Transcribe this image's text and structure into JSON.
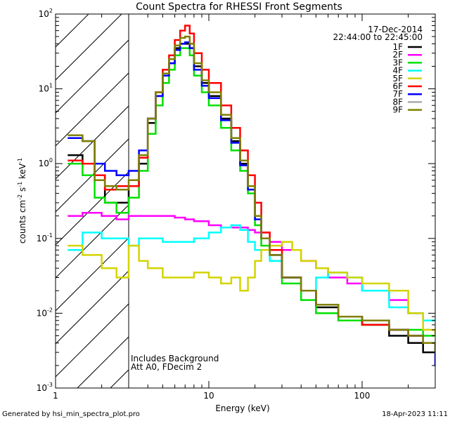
{
  "chart_data": {
    "type": "line",
    "title": "Count Spectra for RHESSI Front Segments",
    "xlabel": "Energy (keV)",
    "ylabel_parts": {
      "a": "counts cm",
      "b": "-2",
      "c": " s",
      "d": "-1",
      "e": " keV",
      "f": "-1"
    },
    "xscale": "log",
    "yscale": "log",
    "xlim": [
      1,
      300
    ],
    "ylim": [
      0.001,
      100
    ],
    "x_ticks": [
      {
        "v": 1,
        "label": "1"
      },
      {
        "v": 10,
        "label": "10"
      },
      {
        "v": 100,
        "label": "100"
      }
    ],
    "y_ticks": [
      {
        "v": 0.001,
        "base": "10",
        "exp": "-3"
      },
      {
        "v": 0.01,
        "base": "10",
        "exp": "-2"
      },
      {
        "v": 0.1,
        "base": "10",
        "exp": "-1"
      },
      {
        "v": 1,
        "base": "10",
        "exp": "0"
      },
      {
        "v": 10,
        "base": "10",
        "exp": "1"
      },
      {
        "v": 100,
        "base": "10",
        "exp": "2"
      }
    ],
    "shaded_region": {
      "x_from": 1,
      "x_to": 3,
      "pattern": "diagonal-hatch"
    },
    "legend_position": "top-right",
    "annotations": {
      "date": "17-Dec-2014",
      "time_range": "22:44:00 to 22:45:00",
      "note1": "Includes Background",
      "note2": "Att A0, FDecim 2"
    },
    "series": [
      {
        "name": "1F",
        "color": "#000000",
        "points": [
          [
            1.2,
            1.3
          ],
          [
            1.5,
            1.0
          ],
          [
            1.8,
            0.7
          ],
          [
            2.1,
            0.3
          ],
          [
            2.5,
            0.3
          ],
          [
            3.0,
            0.5
          ],
          [
            3.5,
            1.0
          ],
          [
            4.0,
            3.5
          ],
          [
            4.5,
            8
          ],
          [
            5.0,
            15
          ],
          [
            5.5,
            22
          ],
          [
            6.0,
            35
          ],
          [
            6.5,
            40
          ],
          [
            7.0,
            40
          ],
          [
            7.5,
            35
          ],
          [
            8.0,
            20
          ],
          [
            9.0,
            12
          ],
          [
            10,
            8
          ],
          [
            12,
            4
          ],
          [
            14,
            2
          ],
          [
            16,
            1
          ],
          [
            18,
            0.5
          ],
          [
            20,
            0.2
          ],
          [
            22,
            0.1
          ],
          [
            25,
            0.06
          ],
          [
            30,
            0.03
          ],
          [
            40,
            0.02
          ],
          [
            50,
            0.012
          ],
          [
            70,
            0.008
          ],
          [
            100,
            0.007
          ],
          [
            150,
            0.005
          ],
          [
            200,
            0.004
          ],
          [
            250,
            0.003
          ],
          [
            300,
            0.003
          ]
        ]
      },
      {
        "name": "2F",
        "color": "#ff00ff",
        "points": [
          [
            1.2,
            0.2
          ],
          [
            1.5,
            0.22
          ],
          [
            2.0,
            0.2
          ],
          [
            2.5,
            0.18
          ],
          [
            3.0,
            0.2
          ],
          [
            4.0,
            0.2
          ],
          [
            5.0,
            0.2
          ],
          [
            6.0,
            0.19
          ],
          [
            7.0,
            0.18
          ],
          [
            8.0,
            0.17
          ],
          [
            10,
            0.15
          ],
          [
            12,
            0.14
          ],
          [
            14,
            0.14
          ],
          [
            16,
            0.14
          ],
          [
            18,
            0.13
          ],
          [
            20,
            0.12
          ],
          [
            25,
            0.09
          ],
          [
            30,
            0.07
          ],
          [
            40,
            0.05
          ],
          [
            50,
            0.04
          ],
          [
            60,
            0.03
          ],
          [
            80,
            0.025
          ],
          [
            100,
            0.02
          ],
          [
            150,
            0.015
          ],
          [
            200,
            0.01
          ],
          [
            250,
            0.008
          ],
          [
            300,
            0.008
          ]
        ]
      },
      {
        "name": "3F",
        "color": "#00e000",
        "points": [
          [
            1.2,
            1.0
          ],
          [
            1.5,
            0.7
          ],
          [
            1.8,
            0.35
          ],
          [
            2.1,
            0.3
          ],
          [
            2.5,
            0.22
          ],
          [
            3.0,
            0.35
          ],
          [
            3.5,
            0.8
          ],
          [
            4.0,
            2.5
          ],
          [
            4.5,
            6
          ],
          [
            5.0,
            12
          ],
          [
            5.5,
            18
          ],
          [
            6.0,
            28
          ],
          [
            6.5,
            35
          ],
          [
            7.0,
            35
          ],
          [
            7.5,
            28
          ],
          [
            8.0,
            15
          ],
          [
            9.0,
            9
          ],
          [
            10,
            6
          ],
          [
            12,
            3
          ],
          [
            14,
            1.5
          ],
          [
            16,
            0.8
          ],
          [
            18,
            0.4
          ],
          [
            20,
            0.15
          ],
          [
            22,
            0.08
          ],
          [
            25,
            0.05
          ],
          [
            30,
            0.025
          ],
          [
            40,
            0.015
          ],
          [
            50,
            0.01
          ],
          [
            70,
            0.008
          ],
          [
            100,
            0.007
          ],
          [
            150,
            0.006
          ],
          [
            200,
            0.006
          ],
          [
            250,
            0.005
          ],
          [
            300,
            0.005
          ]
        ]
      },
      {
        "name": "4F",
        "color": "#00ffff",
        "points": [
          [
            1.2,
            0.07
          ],
          [
            1.5,
            0.12
          ],
          [
            2.0,
            0.1
          ],
          [
            2.5,
            0.1
          ],
          [
            3.0,
            0.08
          ],
          [
            3.5,
            0.1
          ],
          [
            4.0,
            0.1
          ],
          [
            5.0,
            0.09
          ],
          [
            6.0,
            0.09
          ],
          [
            7.0,
            0.09
          ],
          [
            8.0,
            0.1
          ],
          [
            10,
            0.12
          ],
          [
            12,
            0.14
          ],
          [
            14,
            0.15
          ],
          [
            16,
            0.13
          ],
          [
            18,
            0.09
          ],
          [
            20,
            0.07
          ],
          [
            25,
            0.05
          ],
          [
            30,
            0.03
          ],
          [
            40,
            0.02
          ],
          [
            50,
            0.03
          ],
          [
            60,
            0.035
          ],
          [
            80,
            0.03
          ],
          [
            100,
            0.02
          ],
          [
            150,
            0.012
          ],
          [
            200,
            0.01
          ],
          [
            250,
            0.008
          ],
          [
            300,
            0.008
          ]
        ]
      },
      {
        "name": "5F",
        "color": "#d4d400",
        "points": [
          [
            1.2,
            0.08
          ],
          [
            1.5,
            0.06
          ],
          [
            2.0,
            0.04
          ],
          [
            2.5,
            0.03
          ],
          [
            3.0,
            0.08
          ],
          [
            3.5,
            0.05
          ],
          [
            4.0,
            0.04
          ],
          [
            5.0,
            0.03
          ],
          [
            6.0,
            0.03
          ],
          [
            7.0,
            0.03
          ],
          [
            8.0,
            0.035
          ],
          [
            10,
            0.03
          ],
          [
            12,
            0.025
          ],
          [
            14,
            0.03
          ],
          [
            16,
            0.02
          ],
          [
            18,
            0.03
          ],
          [
            20,
            0.05
          ],
          [
            22,
            0.07
          ],
          [
            25,
            0.08
          ],
          [
            30,
            0.09
          ],
          [
            35,
            0.07
          ],
          [
            40,
            0.05
          ],
          [
            50,
            0.04
          ],
          [
            60,
            0.035
          ],
          [
            80,
            0.03
          ],
          [
            100,
            0.025
          ],
          [
            150,
            0.02
          ],
          [
            200,
            0.01
          ],
          [
            250,
            0.006
          ],
          [
            300,
            0.005
          ]
        ]
      },
      {
        "name": "6F",
        "color": "#ff0000",
        "points": [
          [
            1.2,
            1.1
          ],
          [
            1.5,
            1.0
          ],
          [
            1.8,
            0.7
          ],
          [
            2.1,
            0.45
          ],
          [
            2.5,
            0.5
          ],
          [
            3.0,
            0.5
          ],
          [
            3.5,
            1.2
          ],
          [
            4.0,
            4
          ],
          [
            4.5,
            9
          ],
          [
            5.0,
            18
          ],
          [
            5.5,
            28
          ],
          [
            6.0,
            45
          ],
          [
            6.5,
            60
          ],
          [
            7.0,
            70
          ],
          [
            7.5,
            55
          ],
          [
            8.0,
            30
          ],
          [
            9.0,
            18
          ],
          [
            10,
            12
          ],
          [
            12,
            6
          ],
          [
            14,
            3
          ],
          [
            16,
            1.5
          ],
          [
            18,
            0.7
          ],
          [
            20,
            0.3
          ],
          [
            22,
            0.12
          ],
          [
            25,
            0.07
          ],
          [
            30,
            0.03
          ],
          [
            40,
            0.02
          ],
          [
            50,
            0.013
          ],
          [
            70,
            0.009
          ],
          [
            100,
            0.007
          ],
          [
            150,
            0.006
          ],
          [
            200,
            0.005
          ],
          [
            250,
            0.004
          ],
          [
            300,
            0.004
          ]
        ]
      },
      {
        "name": "7F",
        "color": "#0000ff",
        "points": [
          [
            1.2,
            2.2
          ],
          [
            1.5,
            2.0
          ],
          [
            1.8,
            1.0
          ],
          [
            2.1,
            0.8
          ],
          [
            2.5,
            0.7
          ],
          [
            3.0,
            0.8
          ],
          [
            3.5,
            1.5
          ],
          [
            4.0,
            4
          ],
          [
            4.5,
            8
          ],
          [
            5.0,
            15
          ],
          [
            5.5,
            22
          ],
          [
            6.0,
            33
          ],
          [
            6.5,
            40
          ],
          [
            7.0,
            42
          ],
          [
            7.5,
            35
          ],
          [
            8.0,
            18
          ],
          [
            9.0,
            11
          ],
          [
            10,
            7.5
          ],
          [
            12,
            3.8
          ],
          [
            14,
            1.9
          ],
          [
            16,
            0.95
          ],
          [
            18,
            0.45
          ],
          [
            20,
            0.18
          ],
          [
            22,
            0.1
          ],
          [
            25,
            0.06
          ],
          [
            30,
            0.03
          ],
          [
            40,
            0.02
          ],
          [
            50,
            0.013
          ],
          [
            70,
            0.009
          ],
          [
            100,
            0.008
          ],
          [
            150,
            0.006
          ],
          [
            200,
            0.005
          ],
          [
            250,
            0.004
          ],
          [
            300,
            0.002
          ]
        ]
      },
      {
        "name": "8F",
        "color": "#aaaaaa",
        "points": []
      },
      {
        "name": "9F",
        "color": "#808000",
        "points": [
          [
            1.2,
            2.4
          ],
          [
            1.5,
            2.0
          ],
          [
            1.8,
            0.6
          ],
          [
            2.1,
            0.5
          ],
          [
            2.5,
            0.45
          ],
          [
            3.0,
            0.6
          ],
          [
            3.5,
            1.3
          ],
          [
            4.0,
            4
          ],
          [
            4.5,
            9
          ],
          [
            5.0,
            16
          ],
          [
            5.5,
            25
          ],
          [
            6.0,
            38
          ],
          [
            6.5,
            48
          ],
          [
            7.0,
            50
          ],
          [
            7.5,
            40
          ],
          [
            8.0,
            22
          ],
          [
            9.0,
            13
          ],
          [
            10,
            9
          ],
          [
            12,
            4.5
          ],
          [
            14,
            2.2
          ],
          [
            16,
            1.1
          ],
          [
            18,
            0.5
          ],
          [
            20,
            0.2
          ],
          [
            22,
            0.1
          ],
          [
            25,
            0.06
          ],
          [
            30,
            0.03
          ],
          [
            40,
            0.02
          ],
          [
            50,
            0.013
          ],
          [
            70,
            0.009
          ],
          [
            100,
            0.008
          ],
          [
            150,
            0.006
          ],
          [
            200,
            0.005
          ],
          [
            250,
            0.004
          ],
          [
            300,
            0.003
          ]
        ]
      }
    ]
  },
  "footer": {
    "left": "Generated by hsi_min_spectra_plot.pro",
    "right": "18-Apr-2023 11:11"
  }
}
